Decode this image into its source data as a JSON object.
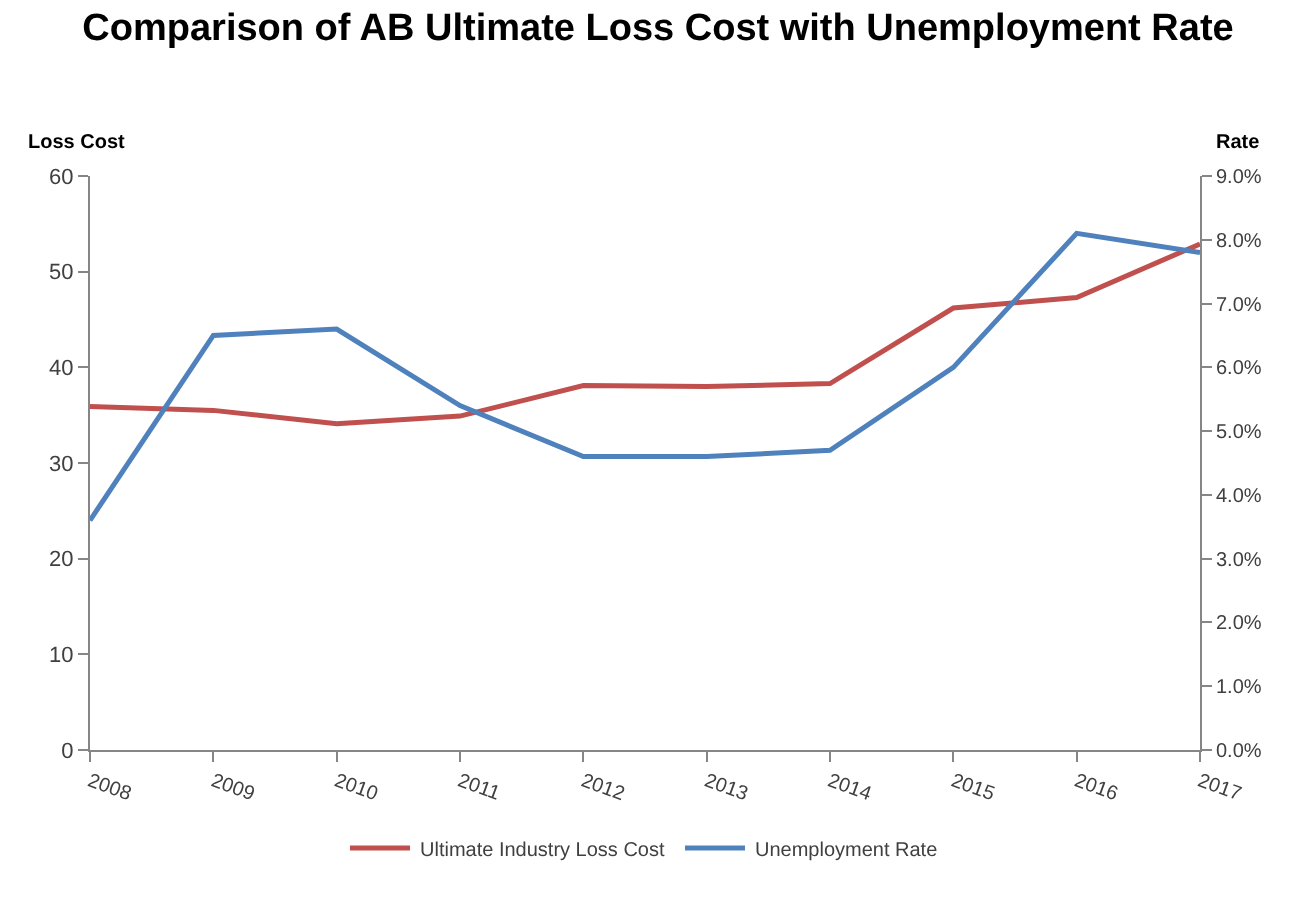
{
  "chart_data": {
    "type": "line",
    "title": "Comparison of AB Ultimate Loss Cost with Unemployment Rate",
    "ylabel": "Loss Cost",
    "y2label": "Rate",
    "categories": [
      "2008",
      "2009",
      "2010",
      "2011",
      "2012",
      "2013",
      "2014",
      "2015",
      "2016",
      "2017"
    ],
    "series": [
      {
        "name": "Ultimate Industry Loss Cost",
        "color": "#c0504d",
        "values": [
          35.9,
          35.5,
          34.1,
          34.9,
          38.1,
          38.0,
          38.3,
          46.2,
          47.3,
          52.9
        ]
      },
      {
        "name": "Unemployment Rate",
        "color": "#4f81bd",
        "axis": "y2",
        "values": [
          3.6,
          6.5,
          6.6,
          5.4,
          4.6,
          4.6,
          4.7,
          6.0,
          8.1,
          7.8
        ]
      }
    ],
    "ylim": [
      0,
      60
    ],
    "yticks": [
      0,
      10,
      20,
      30,
      40,
      50,
      60
    ],
    "y2lim": [
      0,
      9
    ],
    "y2ticks": [
      {
        "value": 0,
        "label": "0.0%"
      },
      {
        "value": 1,
        "label": "1.0%"
      },
      {
        "value": 2,
        "label": "2.0%"
      },
      {
        "value": 3,
        "label": "3.0%"
      },
      {
        "value": 4,
        "label": "4.0%"
      },
      {
        "value": 5,
        "label": "5.0%"
      },
      {
        "value": 6,
        "label": "6.0%"
      },
      {
        "value": 7,
        "label": "7.0%"
      },
      {
        "value": 8,
        "label": "8.0%"
      },
      {
        "value": 9,
        "label": "9.0%"
      }
    ],
    "grid": false,
    "legend": "bottom",
    "marker": "none",
    "line_style": "solid"
  }
}
